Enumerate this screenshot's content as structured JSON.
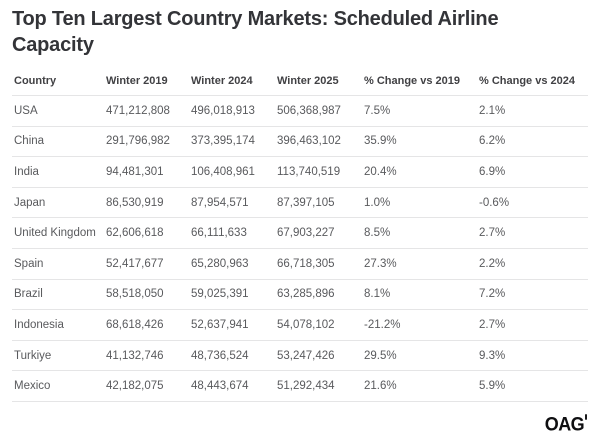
{
  "title": "Top Ten Largest Country Markets: Scheduled Airline Capacity",
  "branding": {
    "logo": "OAG"
  },
  "colors": {
    "background": "#ffffff",
    "title_text": "#333438",
    "header_text": "#414144",
    "body_text": "#595a5d",
    "divider": "#e5e5e6",
    "logo": "#0f0f11"
  },
  "table": {
    "columns": [
      "Country",
      "Winter 2019",
      "Winter 2024",
      "Winter 2025",
      "% Change vs 2019",
      "% Change vs 2024"
    ],
    "rows": [
      {
        "country": "USA",
        "w2019": "471,212,808",
        "w2024": "496,018,913",
        "w2025": "506,368,987",
        "chg2019": "7.5%",
        "chg2024": "2.1%"
      },
      {
        "country": "China",
        "w2019": "291,796,982",
        "w2024": "373,395,174",
        "w2025": "396,463,102",
        "chg2019": "35.9%",
        "chg2024": "6.2%"
      },
      {
        "country": "India",
        "w2019": "94,481,301",
        "w2024": "106,408,961",
        "w2025": "113,740,519",
        "chg2019": "20.4%",
        "chg2024": "6.9%"
      },
      {
        "country": "Japan",
        "w2019": "86,530,919",
        "w2024": "87,954,571",
        "w2025": "87,397,105",
        "chg2019": "1.0%",
        "chg2024": "-0.6%"
      },
      {
        "country": "United Kingdom",
        "w2019": "62,606,618",
        "w2024": "66,111,633",
        "w2025": "67,903,227",
        "chg2019": "8.5%",
        "chg2024": "2.7%"
      },
      {
        "country": "Spain",
        "w2019": "52,417,677",
        "w2024": "65,280,963",
        "w2025": "66,718,305",
        "chg2019": "27.3%",
        "chg2024": "2.2%"
      },
      {
        "country": "Brazil",
        "w2019": "58,518,050",
        "w2024": "59,025,391",
        "w2025": "63,285,896",
        "chg2019": "8.1%",
        "chg2024": "7.2%"
      },
      {
        "country": "Indonesia",
        "w2019": "68,618,426",
        "w2024": "52,637,941",
        "w2025": "54,078,102",
        "chg2019": "-21.2%",
        "chg2024": "2.7%"
      },
      {
        "country": "Turkiye",
        "w2019": "41,132,746",
        "w2024": "48,736,524",
        "w2025": "53,247,426",
        "chg2019": "29.5%",
        "chg2024": "9.3%"
      },
      {
        "country": "Mexico",
        "w2019": "42,182,075",
        "w2024": "48,443,674",
        "w2025": "51,292,434",
        "chg2019": "21.6%",
        "chg2024": "5.9%"
      }
    ]
  },
  "chart_data": {
    "type": "table",
    "title": "Top Ten Largest Country Markets: Scheduled Airline Capacity",
    "columns": [
      "Country",
      "Winter 2019",
      "Winter 2024",
      "Winter 2025",
      "% Change vs 2019",
      "% Change vs 2024"
    ],
    "rows": [
      [
        "USA",
        471212808,
        496018913,
        506368987,
        7.5,
        2.1
      ],
      [
        "China",
        291796982,
        373395174,
        396463102,
        35.9,
        6.2
      ],
      [
        "India",
        94481301,
        106408961,
        113740519,
        20.4,
        6.9
      ],
      [
        "Japan",
        86530919,
        87954571,
        87397105,
        1.0,
        -0.6
      ],
      [
        "United Kingdom",
        62606618,
        66111633,
        67903227,
        8.5,
        2.7
      ],
      [
        "Spain",
        52417677,
        65280963,
        66718305,
        27.3,
        2.2
      ],
      [
        "Brazil",
        58518050,
        59025391,
        63285896,
        8.1,
        7.2
      ],
      [
        "Indonesia",
        68618426,
        52637941,
        54078102,
        -21.2,
        2.7
      ],
      [
        "Turkiye",
        41132746,
        48736524,
        53247426,
        29.5,
        9.3
      ],
      [
        "Mexico",
        42182075,
        48443674,
        51292434,
        21.6,
        5.9
      ]
    ],
    "units": {
      "capacity_columns": "scheduled seats",
      "change_columns": "%"
    },
    "source_logo": "OAG"
  }
}
